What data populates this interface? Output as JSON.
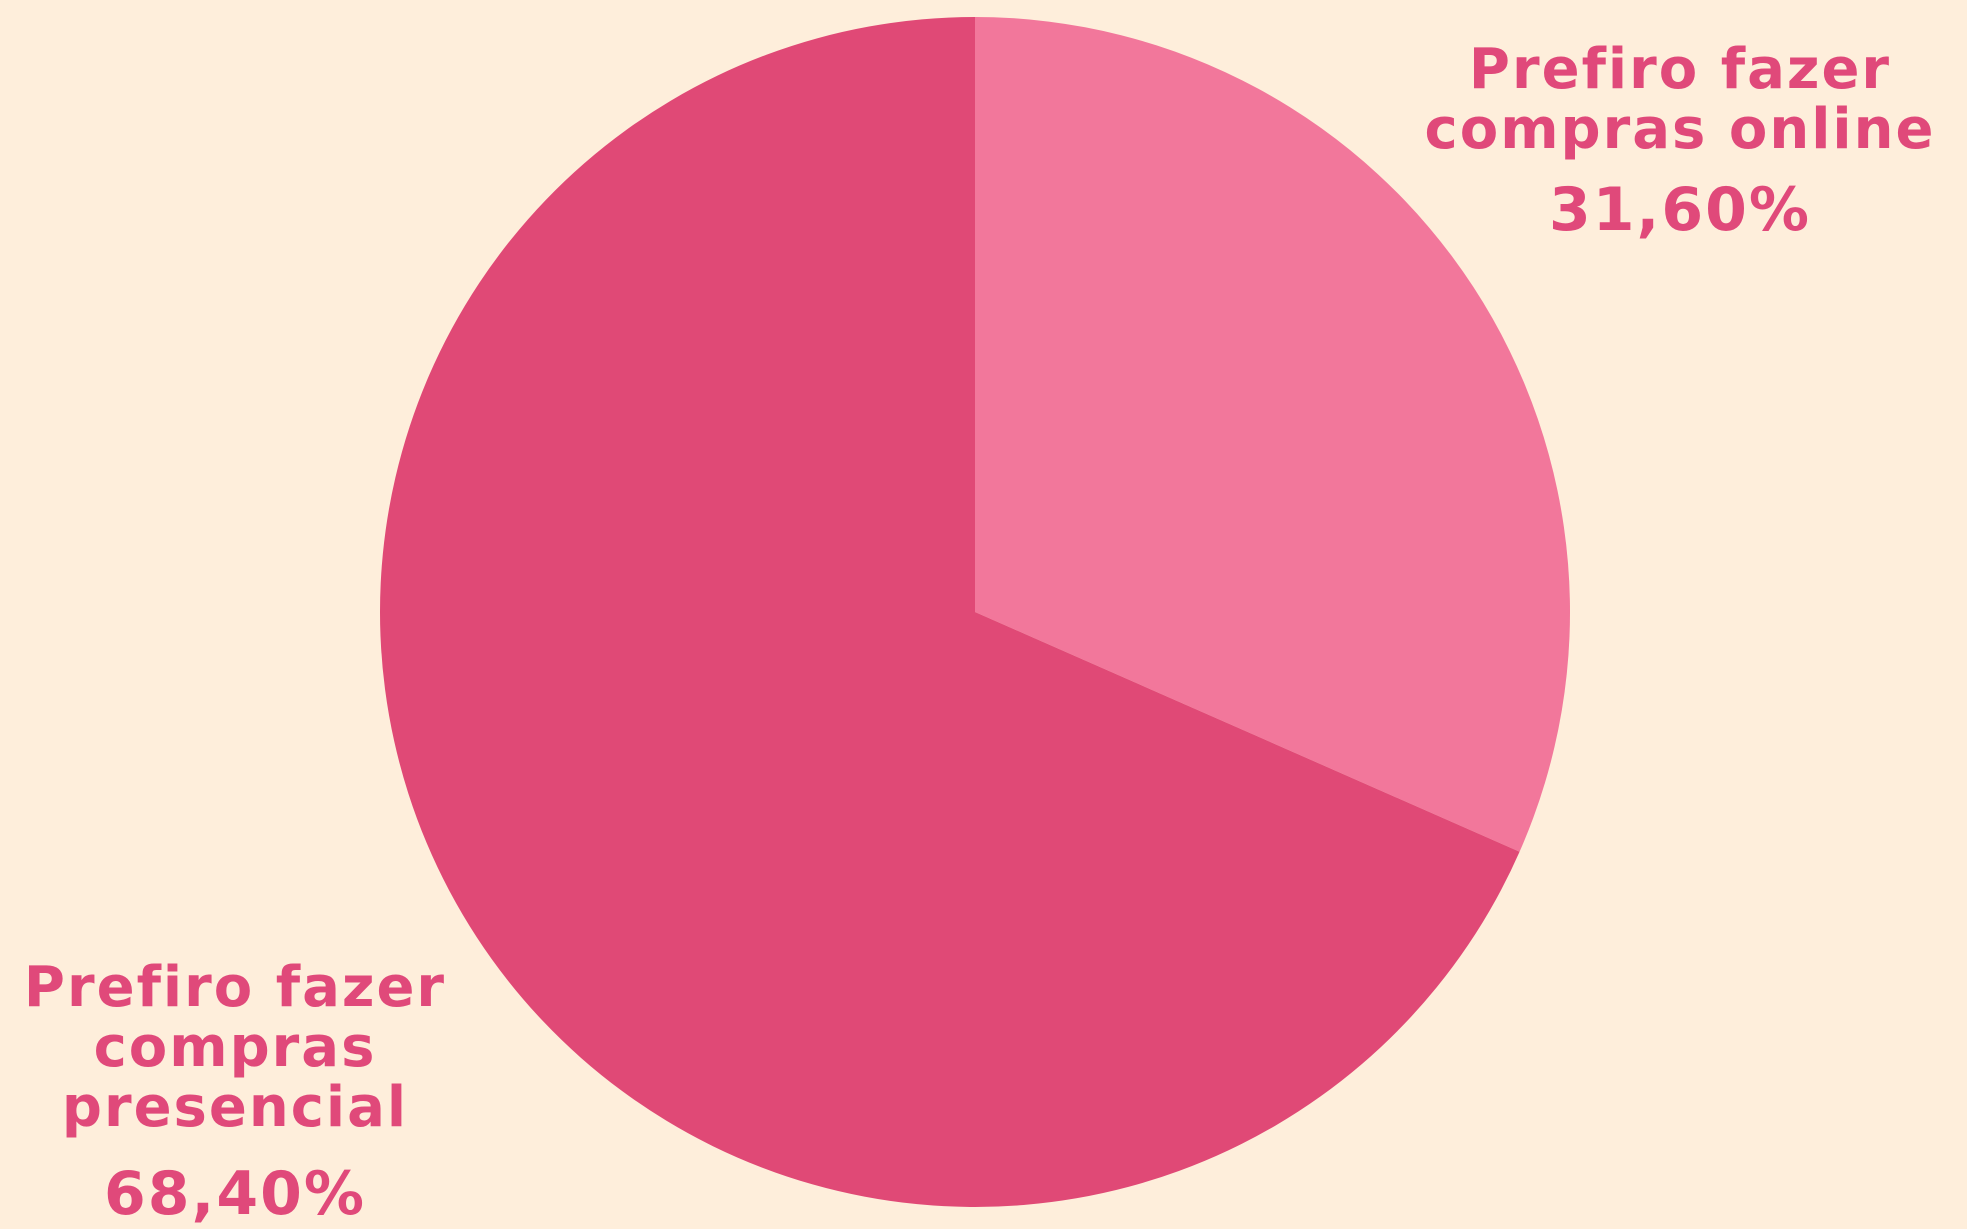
{
  "chart_data": {
    "type": "pie",
    "slices": [
      {
        "label": "Prefiro fazer compras online",
        "value": 31.6,
        "value_label": "31,60%",
        "color": "#F2779B"
      },
      {
        "label": "Prefiro fazer compras presencial",
        "value": 68.4,
        "value_label": "68,40%",
        "color": "#E04976"
      }
    ],
    "start_angle": "12 o'clock",
    "direction": "clockwise",
    "label_color": "#E0497A",
    "background": "#FEEEDB"
  }
}
